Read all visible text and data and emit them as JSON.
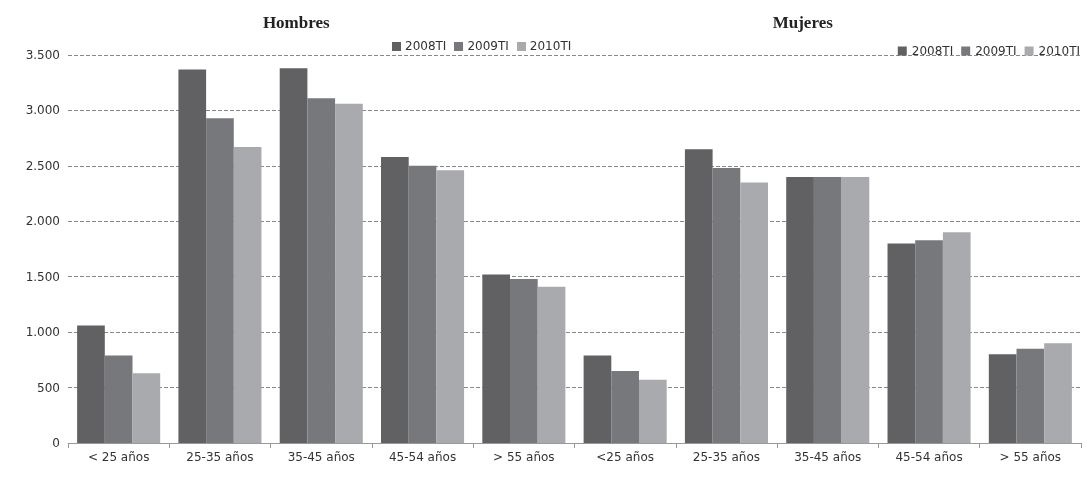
{
  "chart_data": {
    "type": "bar",
    "categories": [
      "< 25 años",
      "25-35 años",
      "35-45 años",
      "45-54 años",
      "> 55 años",
      "<25 años",
      "25-35 años",
      "35-45 años",
      "45-54 años",
      "> 55 años"
    ],
    "series": [
      {
        "name": "2008TI",
        "color": "#616164",
        "values": [
          1060,
          3370,
          3380,
          2580,
          1520,
          790,
          2650,
          2400,
          1800,
          800
        ]
      },
      {
        "name": "2009TI",
        "color": "#77787c",
        "values": [
          790,
          2930,
          3110,
          2500,
          1480,
          650,
          2480,
          2400,
          1830,
          850
        ]
      },
      {
        "name": "2010TI",
        "color": "#a9aaad",
        "values": [
          630,
          2670,
          3060,
          2460,
          1410,
          570,
          2350,
          2400,
          1900,
          900
        ]
      }
    ],
    "ylim": [
      0,
      3500
    ],
    "yticks": [
      {
        "value": 0,
        "label": "0"
      },
      {
        "value": 500,
        "label": "500"
      },
      {
        "value": 1000,
        "label": "1.000"
      },
      {
        "value": 1500,
        "label": "1.500"
      },
      {
        "value": 2000,
        "label": "2.000"
      },
      {
        "value": 2500,
        "label": "2.500"
      },
      {
        "value": 3000,
        "label": "3.000"
      },
      {
        "value": 3500,
        "label": "3.500"
      }
    ],
    "annotations": [
      "Hombres",
      "Mujeres"
    ],
    "grid": "y",
    "legend": "top right"
  }
}
